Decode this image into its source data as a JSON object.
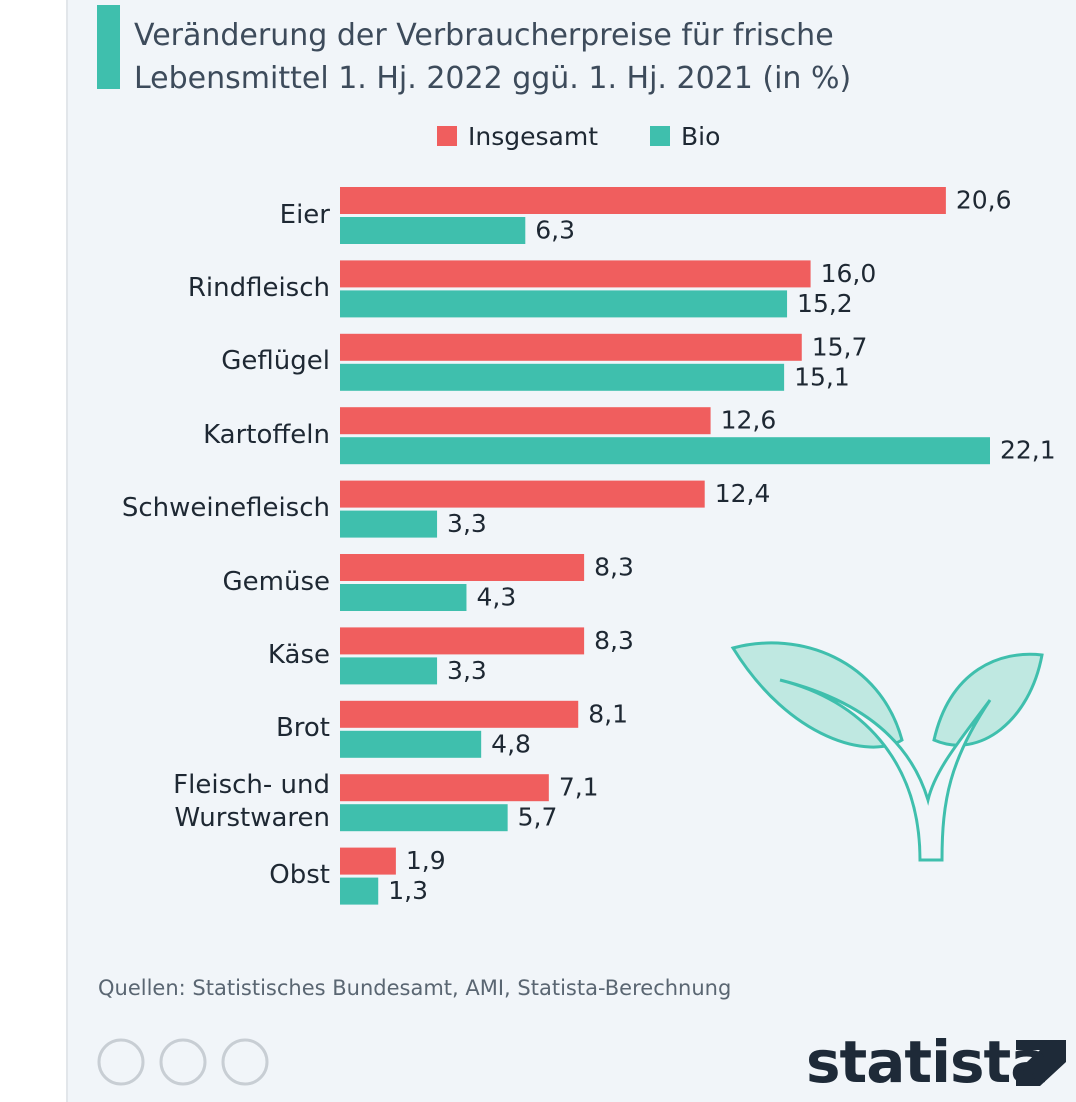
{
  "chart_data": {
    "type": "bar",
    "orientation": "horizontal",
    "title": "Veränderung der Verbraucherpreise für frische Lebensmittel 1. Hj. 2022 ggü. 1. Hj. 2021 (in %)",
    "categories": [
      "Eier",
      "Rindfleisch",
      "Geflügel",
      "Kartoffeln",
      "Schweinefleisch",
      "Gemüse",
      "Käse",
      "Brot",
      "Fleisch- und Wurstwaren",
      "Obst"
    ],
    "series": [
      {
        "name": "Insgesamt",
        "color": "#f05e5e",
        "values": [
          20.6,
          16.0,
          15.7,
          12.6,
          12.4,
          8.3,
          8.3,
          8.1,
          7.1,
          1.9
        ],
        "value_labels": [
          "20,6",
          "16,0",
          "15,7",
          "12,6",
          "12,4",
          "8,3",
          "8,3",
          "8,1",
          "7,1",
          "1,9"
        ]
      },
      {
        "name": "Bio",
        "color": "#3fbfad",
        "values": [
          6.3,
          15.2,
          15.1,
          22.1,
          3.3,
          4.3,
          3.3,
          4.8,
          5.7,
          1.3
        ],
        "value_labels": [
          "6,3",
          "15,2",
          "15,1",
          "22,1",
          "3,3",
          "4,3",
          "3,3",
          "4,8",
          "5,7",
          "1,3"
        ]
      }
    ],
    "legend": "top",
    "source": "Quellen: Statistisches Bundesamt, AMI, Statista-Berechnung",
    "brand": "statista"
  }
}
